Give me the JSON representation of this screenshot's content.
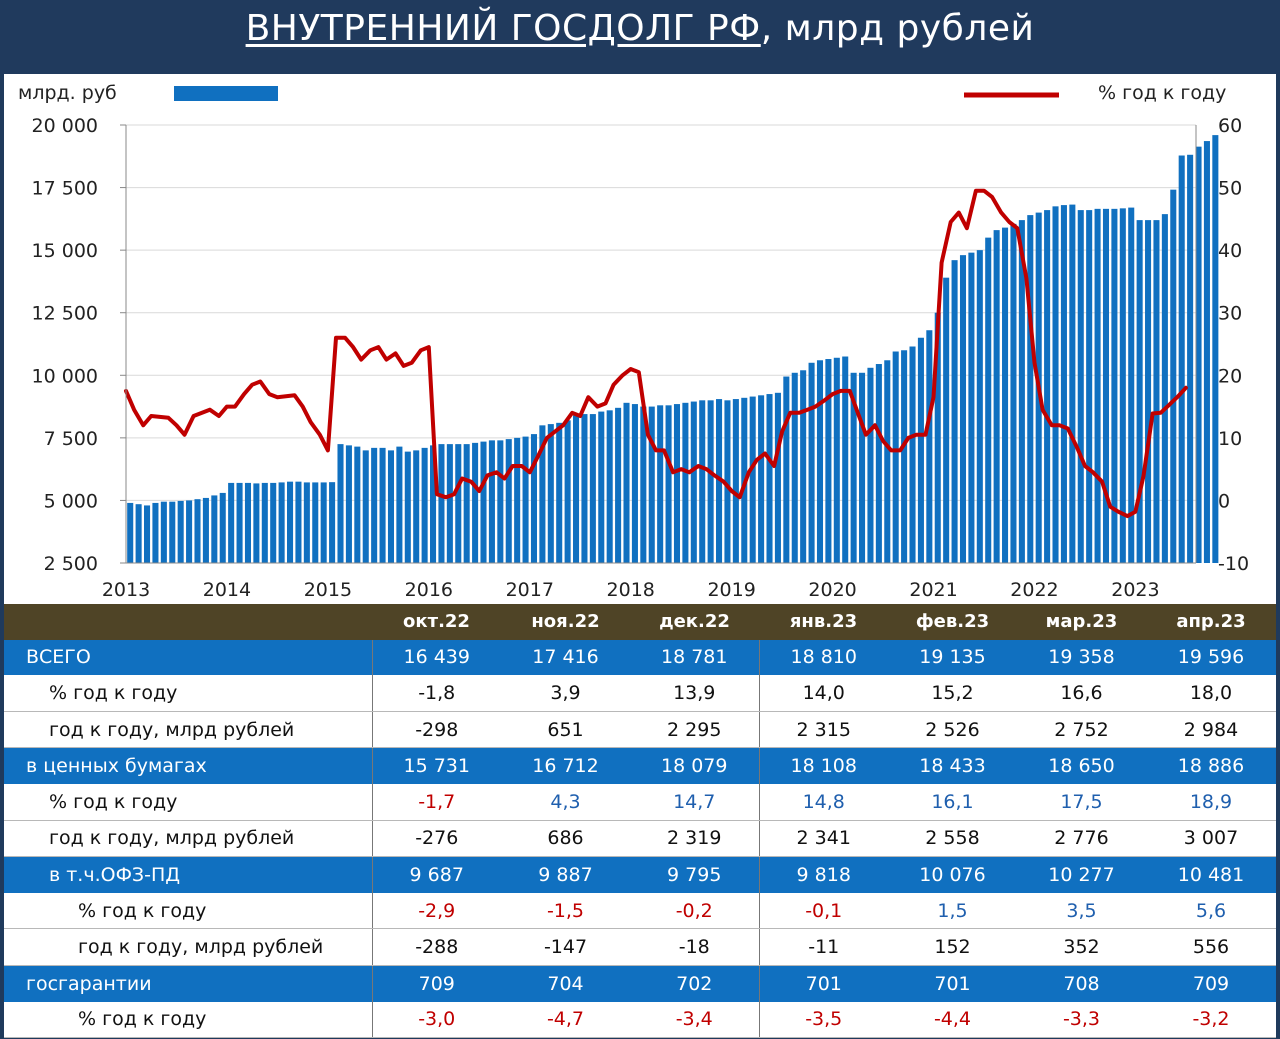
{
  "title": {
    "part1": "ВНУТРЕННИЙ ГОСДОЛГ РФ",
    "part2": ", млрд рублей"
  },
  "chart_data": {
    "type": "bar+line",
    "left_axis_label": "млрд. руб",
    "right_axis_label": "% год к году",
    "left_ticks": [
      "20 000",
      "17 500",
      "15 000",
      "12 500",
      "10 000",
      "7 500",
      "5 000",
      "2 500"
    ],
    "left_tick_values": [
      20000,
      17500,
      15000,
      12500,
      10000,
      7500,
      5000,
      2500
    ],
    "right_ticks": [
      "60",
      "50",
      "40",
      "30",
      "20",
      "10",
      "0",
      "-10"
    ],
    "right_tick_values": [
      60,
      50,
      40,
      30,
      20,
      10,
      0,
      -10
    ],
    "ylim_left": [
      2500,
      20000
    ],
    "ylim_right": [
      -10,
      60
    ],
    "x_labels": [
      "2013",
      "2014",
      "2015",
      "2016",
      "2017",
      "2018",
      "2019",
      "2020",
      "2021",
      "2022",
      "2023"
    ],
    "x_start": 2013.0,
    "bar_color": "#1070c0",
    "line_color": "#c00000",
    "grid": true,
    "bar_series": {
      "name": "млрд. руб",
      "start": 2013.0,
      "step_months": 1,
      "values": [
        4900,
        4850,
        4800,
        4900,
        4950,
        4950,
        4980,
        5000,
        5050,
        5100,
        5200,
        5300,
        5700,
        5700,
        5700,
        5680,
        5700,
        5700,
        5720,
        5750,
        5750,
        5720,
        5720,
        5720,
        5730,
        7250,
        7200,
        7150,
        7000,
        7100,
        7100,
        7000,
        7150,
        6950,
        7000,
        7100,
        7200,
        7250,
        7250,
        7250,
        7250,
        7300,
        7350,
        7400,
        7400,
        7450,
        7500,
        7550,
        7650,
        8000,
        8050,
        8100,
        8200,
        8400,
        8450,
        8450,
        8550,
        8600,
        8700,
        8900,
        8850,
        8750,
        8750,
        8800,
        8800,
        8850,
        8900,
        8950,
        9000,
        9000,
        9050,
        9000,
        9050,
        9100,
        9150,
        9200,
        9250,
        9300,
        9950,
        10100,
        10200,
        10500,
        10600,
        10650,
        10700,
        10750,
        10100,
        10100,
        10300,
        10450,
        10600,
        10950,
        11000,
        11150,
        11500,
        11800,
        12500,
        13900,
        14600,
        14800,
        14900,
        15000,
        15500,
        15800,
        15900,
        16050,
        16200,
        16400,
        16500,
        16600,
        16750,
        16800,
        16820,
        16600,
        16600,
        16650,
        16650,
        16650,
        16670,
        16700,
        16200,
        16200,
        16200,
        16439,
        17416,
        18781,
        18810,
        19135,
        19358,
        19596
      ]
    },
    "line_series": {
      "name": "% год к году",
      "points": [
        [
          2013.0,
          17.5
        ],
        [
          2013.08,
          14.5
        ],
        [
          2013.17,
          12.0
        ],
        [
          2013.25,
          13.5
        ],
        [
          2013.42,
          13.2
        ],
        [
          2013.5,
          12.0
        ],
        [
          2013.58,
          10.5
        ],
        [
          2013.67,
          13.5
        ],
        [
          2013.83,
          14.5
        ],
        [
          2013.92,
          13.5
        ],
        [
          2014.0,
          15.0
        ],
        [
          2014.08,
          15.0
        ],
        [
          2014.17,
          17.0
        ],
        [
          2014.25,
          18.5
        ],
        [
          2014.33,
          19.0
        ],
        [
          2014.42,
          17.0
        ],
        [
          2014.5,
          16.5
        ],
        [
          2014.67,
          16.8
        ],
        [
          2014.75,
          15.0
        ],
        [
          2014.83,
          12.5
        ],
        [
          2014.92,
          10.5
        ],
        [
          2015.0,
          8.0
        ],
        [
          2015.08,
          26.0
        ],
        [
          2015.17,
          26.0
        ],
        [
          2015.25,
          24.5
        ],
        [
          2015.33,
          22.5
        ],
        [
          2015.42,
          24.0
        ],
        [
          2015.5,
          24.5
        ],
        [
          2015.58,
          22.5
        ],
        [
          2015.67,
          23.5
        ],
        [
          2015.75,
          21.5
        ],
        [
          2015.83,
          22.0
        ],
        [
          2015.92,
          24.0
        ],
        [
          2016.0,
          24.5
        ],
        [
          2016.08,
          1.0
        ],
        [
          2016.17,
          0.5
        ],
        [
          2016.25,
          1.0
        ],
        [
          2016.33,
          3.5
        ],
        [
          2016.42,
          3.0
        ],
        [
          2016.5,
          1.5
        ],
        [
          2016.58,
          4.0
        ],
        [
          2016.67,
          4.5
        ],
        [
          2016.75,
          3.5
        ],
        [
          2016.83,
          5.5
        ],
        [
          2016.92,
          5.5
        ],
        [
          2017.0,
          4.5
        ],
        [
          2017.08,
          7.0
        ],
        [
          2017.17,
          10.0
        ],
        [
          2017.25,
          11.0
        ],
        [
          2017.33,
          12.0
        ],
        [
          2017.42,
          14.0
        ],
        [
          2017.5,
          13.5
        ],
        [
          2017.58,
          16.5
        ],
        [
          2017.67,
          15.0
        ],
        [
          2017.75,
          15.5
        ],
        [
          2017.83,
          18.5
        ],
        [
          2017.92,
          20.0
        ],
        [
          2018.0,
          21.0
        ],
        [
          2018.08,
          20.5
        ],
        [
          2018.17,
          10.5
        ],
        [
          2018.25,
          8.0
        ],
        [
          2018.33,
          8.0
        ],
        [
          2018.42,
          4.5
        ],
        [
          2018.5,
          5.0
        ],
        [
          2018.58,
          4.5
        ],
        [
          2018.67,
          5.5
        ],
        [
          2018.75,
          5.0
        ],
        [
          2018.83,
          4.0
        ],
        [
          2018.92,
          3.0
        ],
        [
          2019.0,
          1.5
        ],
        [
          2019.08,
          0.5
        ],
        [
          2019.17,
          4.5
        ],
        [
          2019.25,
          6.5
        ],
        [
          2019.33,
          7.5
        ],
        [
          2019.42,
          5.5
        ],
        [
          2019.5,
          11.0
        ],
        [
          2019.58,
          14.0
        ],
        [
          2019.67,
          14.0
        ],
        [
          2019.75,
          14.5
        ],
        [
          2019.83,
          15.0
        ],
        [
          2019.92,
          16.0
        ],
        [
          2020.0,
          17.0
        ],
        [
          2020.08,
          17.5
        ],
        [
          2020.17,
          17.5
        ],
        [
          2020.25,
          14.0
        ],
        [
          2020.33,
          10.5
        ],
        [
          2020.42,
          12.0
        ],
        [
          2020.5,
          9.5
        ],
        [
          2020.58,
          8.0
        ],
        [
          2020.67,
          8.0
        ],
        [
          2020.75,
          10.0
        ],
        [
          2020.83,
          10.5
        ],
        [
          2020.92,
          10.5
        ],
        [
          2021.0,
          16.5
        ],
        [
          2021.08,
          38.0
        ],
        [
          2021.17,
          44.5
        ],
        [
          2021.25,
          46.0
        ],
        [
          2021.33,
          43.5
        ],
        [
          2021.42,
          49.5
        ],
        [
          2021.5,
          49.5
        ],
        [
          2021.58,
          48.5
        ],
        [
          2021.67,
          46.0
        ],
        [
          2021.75,
          44.5
        ],
        [
          2021.83,
          43.5
        ],
        [
          2021.92,
          35.5
        ],
        [
          2022.0,
          22.0
        ],
        [
          2022.08,
          14.5
        ],
        [
          2022.17,
          12.0
        ],
        [
          2022.25,
          12.0
        ],
        [
          2022.33,
          11.5
        ],
        [
          2022.42,
          8.5
        ],
        [
          2022.5,
          5.5
        ],
        [
          2022.58,
          4.5
        ],
        [
          2022.67,
          3.0
        ],
        [
          2022.75,
          -1.0
        ],
        [
          2022.83,
          -1.8
        ],
        [
          2022.92,
          -2.5
        ],
        [
          2023.0,
          -1.8
        ],
        [
          2023.08,
          3.9
        ],
        [
          2023.17,
          13.9
        ],
        [
          2023.25,
          14.0
        ],
        [
          2023.33,
          15.2
        ],
        [
          2023.42,
          16.6
        ],
        [
          2023.5,
          18.0
        ]
      ]
    }
  },
  "table": {
    "columns": [
      "окт.22",
      "ноя.22",
      "дек.22",
      "янв.23",
      "фев.23",
      "мар.23",
      "апр.23"
    ],
    "rows": [
      {
        "label": "ВСЕГО",
        "type": "blue",
        "indent": 0,
        "values": [
          "16 439",
          "17 416",
          "18 781",
          "18 810",
          "19 135",
          "19 358",
          "19 596"
        ]
      },
      {
        "label": "% год к году",
        "type": "white",
        "indent": 1,
        "values": [
          "-1,8",
          "3,9",
          "13,9",
          "14,0",
          "15,2",
          "16,6",
          "18,0"
        ]
      },
      {
        "label": "год к году, млрд рублей",
        "type": "white",
        "indent": 1,
        "values": [
          "-298",
          "651",
          "2 295",
          "2 315",
          "2 526",
          "2 752",
          "2 984"
        ]
      },
      {
        "label": "в ценных бумагах",
        "type": "blue",
        "indent": 0,
        "values": [
          "15 731",
          "16 712",
          "18 079",
          "18 108",
          "18 433",
          "18 650",
          "18 886"
        ]
      },
      {
        "label": "% год к году",
        "type": "white",
        "indent": 1,
        "colored": true,
        "values": [
          "-1,7",
          "4,3",
          "14,7",
          "14,8",
          "16,1",
          "17,5",
          "18,9"
        ]
      },
      {
        "label": "год к году, млрд рублей",
        "type": "white",
        "indent": 1,
        "values": [
          "-276",
          "686",
          "2 319",
          "2 341",
          "2 558",
          "2 776",
          "3 007"
        ]
      },
      {
        "label": "в т.ч.ОФЗ-ПД",
        "type": "blue",
        "indent": 1,
        "values": [
          "9 687",
          "9 887",
          "9 795",
          "9 818",
          "10 076",
          "10 277",
          "10 481"
        ]
      },
      {
        "label": "% год к году",
        "type": "white",
        "indent": 2,
        "colored": true,
        "values": [
          "-2,9",
          "-1,5",
          "-0,2",
          "-0,1",
          "1,5",
          "3,5",
          "5,6"
        ]
      },
      {
        "label": "год к году, млрд рублей",
        "type": "white",
        "indent": 2,
        "values": [
          "-288",
          "-147",
          "-18",
          "-11",
          "152",
          "352",
          "556"
        ]
      },
      {
        "label": "госгарантии",
        "type": "blue",
        "indent": 0,
        "values": [
          "709",
          "704",
          "702",
          "701",
          "701",
          "708",
          "709"
        ]
      },
      {
        "label": "% год к году",
        "type": "white",
        "indent": 2,
        "colored": true,
        "values": [
          "-3,0",
          "-4,7",
          "-3,4",
          "-3,5",
          "-4,4",
          "-3,3",
          "-3,2"
        ]
      }
    ]
  }
}
